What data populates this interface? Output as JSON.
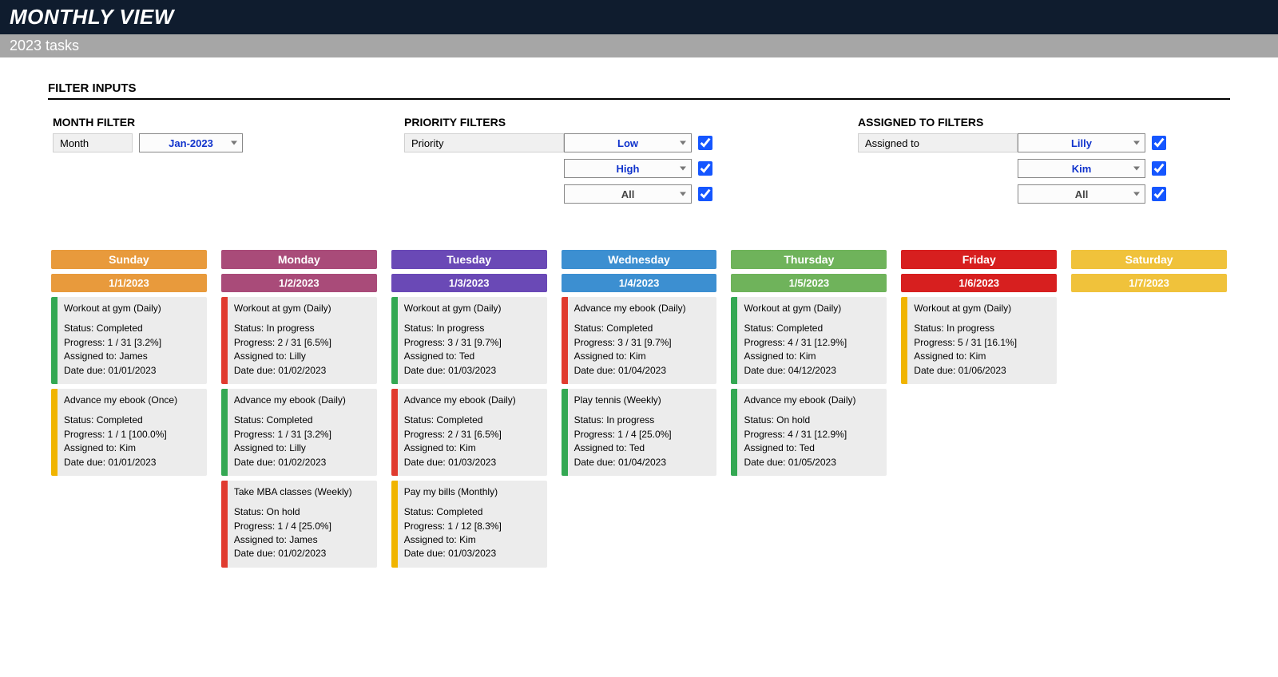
{
  "header": {
    "title": "MONTHLY VIEW",
    "subtitle": "2023 tasks"
  },
  "sections": {
    "filter_inputs": "FILTER INPUTS"
  },
  "filters": {
    "month": {
      "title": "MONTH FILTER",
      "label": "Month",
      "selected": "Jan-2023"
    },
    "priority": {
      "title": "PRIORITY FILTERS",
      "label": "Priority",
      "options": [
        {
          "value": "Low",
          "color": "#1033cc",
          "checked": true
        },
        {
          "value": "High",
          "color": "#1033cc",
          "checked": true
        },
        {
          "value": "All",
          "color": "#444444",
          "checked": true
        }
      ]
    },
    "assigned": {
      "title": "ASSIGNED TO FILTERS",
      "label": "Assigned to",
      "options": [
        {
          "value": "Lilly",
          "color": "#1033cc",
          "checked": true
        },
        {
          "value": "Kim",
          "color": "#1033cc",
          "checked": true
        },
        {
          "value": "All",
          "color": "#444444",
          "checked": true
        }
      ]
    }
  },
  "status_colors": {
    "Completed": "#34a853",
    "In progress": "#f0b400",
    "On hold": "#e03b2f"
  },
  "days": [
    {
      "name": "Sunday",
      "date": "1/1/2023",
      "header_color": "#e89a3c",
      "date_color": "#e89a3c",
      "tasks": [
        {
          "title": "Workout at gym (Daily)",
          "status": "Completed",
          "progress": "1 / 31  [3.2%]",
          "assigned": "James",
          "due": "01/01/2023",
          "stripe": "#34a853"
        },
        {
          "title": "Advance my ebook (Once)",
          "status": "Completed",
          "progress": "1 / 1  [100.0%]",
          "assigned": "Kim",
          "due": "01/01/2023",
          "stripe": "#f0b400"
        }
      ]
    },
    {
      "name": "Monday",
      "date": "1/2/2023",
      "header_color": "#a94b79",
      "date_color": "#a94b79",
      "tasks": [
        {
          "title": "Workout at gym (Daily)",
          "status": "In progress",
          "progress": "2 / 31  [6.5%]",
          "assigned": "Lilly",
          "due": "01/02/2023",
          "stripe": "#e03b2f"
        },
        {
          "title": "Advance my ebook (Daily)",
          "status": "Completed",
          "progress": "1 / 31  [3.2%]",
          "assigned": "Lilly",
          "due": "01/02/2023",
          "stripe": "#34a853"
        },
        {
          "title": "Take MBA classes (Weekly)",
          "status": "On hold",
          "progress": "1 / 4  [25.0%]",
          "assigned": "James",
          "due": "01/02/2023",
          "stripe": "#e03b2f"
        }
      ]
    },
    {
      "name": "Tuesday",
      "date": "1/3/2023",
      "header_color": "#6a49b6",
      "date_color": "#6a49b6",
      "tasks": [
        {
          "title": "Workout at gym (Daily)",
          "status": "In progress",
          "progress": "3 / 31  [9.7%]",
          "assigned": "Ted",
          "due": "01/03/2023",
          "stripe": "#34a853"
        },
        {
          "title": "Advance my ebook (Daily)",
          "status": "Completed",
          "progress": "2 / 31  [6.5%]",
          "assigned": "Kim",
          "due": "01/03/2023",
          "stripe": "#e03b2f"
        },
        {
          "title": "Pay my bills (Monthly)",
          "status": "Completed",
          "progress": "1 / 12  [8.3%]",
          "assigned": "Kim",
          "due": "01/03/2023",
          "stripe": "#f0b400"
        }
      ]
    },
    {
      "name": "Wednesday",
      "date": "1/4/2023",
      "header_color": "#3c8fd1",
      "date_color": "#3c8fd1",
      "tasks": [
        {
          "title": "Advance my ebook (Daily)",
          "status": "Completed",
          "progress": "3 / 31  [9.7%]",
          "assigned": "Kim",
          "due": "01/04/2023",
          "stripe": "#e03b2f"
        },
        {
          "title": "Play tennis (Weekly)",
          "status": "In progress",
          "progress": "1 / 4  [25.0%]",
          "assigned": "Ted",
          "due": "01/04/2023",
          "stripe": "#34a853"
        }
      ]
    },
    {
      "name": "Thursday",
      "date": "1/5/2023",
      "header_color": "#6fb35b",
      "date_color": "#6fb35b",
      "tasks": [
        {
          "title": "Workout at gym (Daily)",
          "status": "Completed",
          "progress": "4 / 31  [12.9%]",
          "assigned": "Kim",
          "due": "04/12/2023",
          "stripe": "#34a853"
        },
        {
          "title": "Advance my ebook (Daily)",
          "status": "On hold",
          "progress": "4 / 31  [12.9%]",
          "assigned": "Ted",
          "due": "01/05/2023",
          "stripe": "#34a853"
        }
      ]
    },
    {
      "name": "Friday",
      "date": "1/6/2023",
      "header_color": "#d71f1f",
      "date_color": "#d71f1f",
      "tasks": [
        {
          "title": "Workout at gym (Daily)",
          "status": "In progress",
          "progress": "5 / 31  [16.1%]",
          "assigned": "Kim",
          "due": "01/06/2023",
          "stripe": "#f0b400"
        }
      ]
    },
    {
      "name": "Saturday",
      "date": "1/7/2023",
      "header_color": "#f0c23b",
      "date_color": "#f0c23b",
      "tasks": []
    }
  ],
  "labels": {
    "status": "Status:",
    "progress": "Progress:",
    "assigned": "Assigned to:",
    "due": "Date due:"
  }
}
